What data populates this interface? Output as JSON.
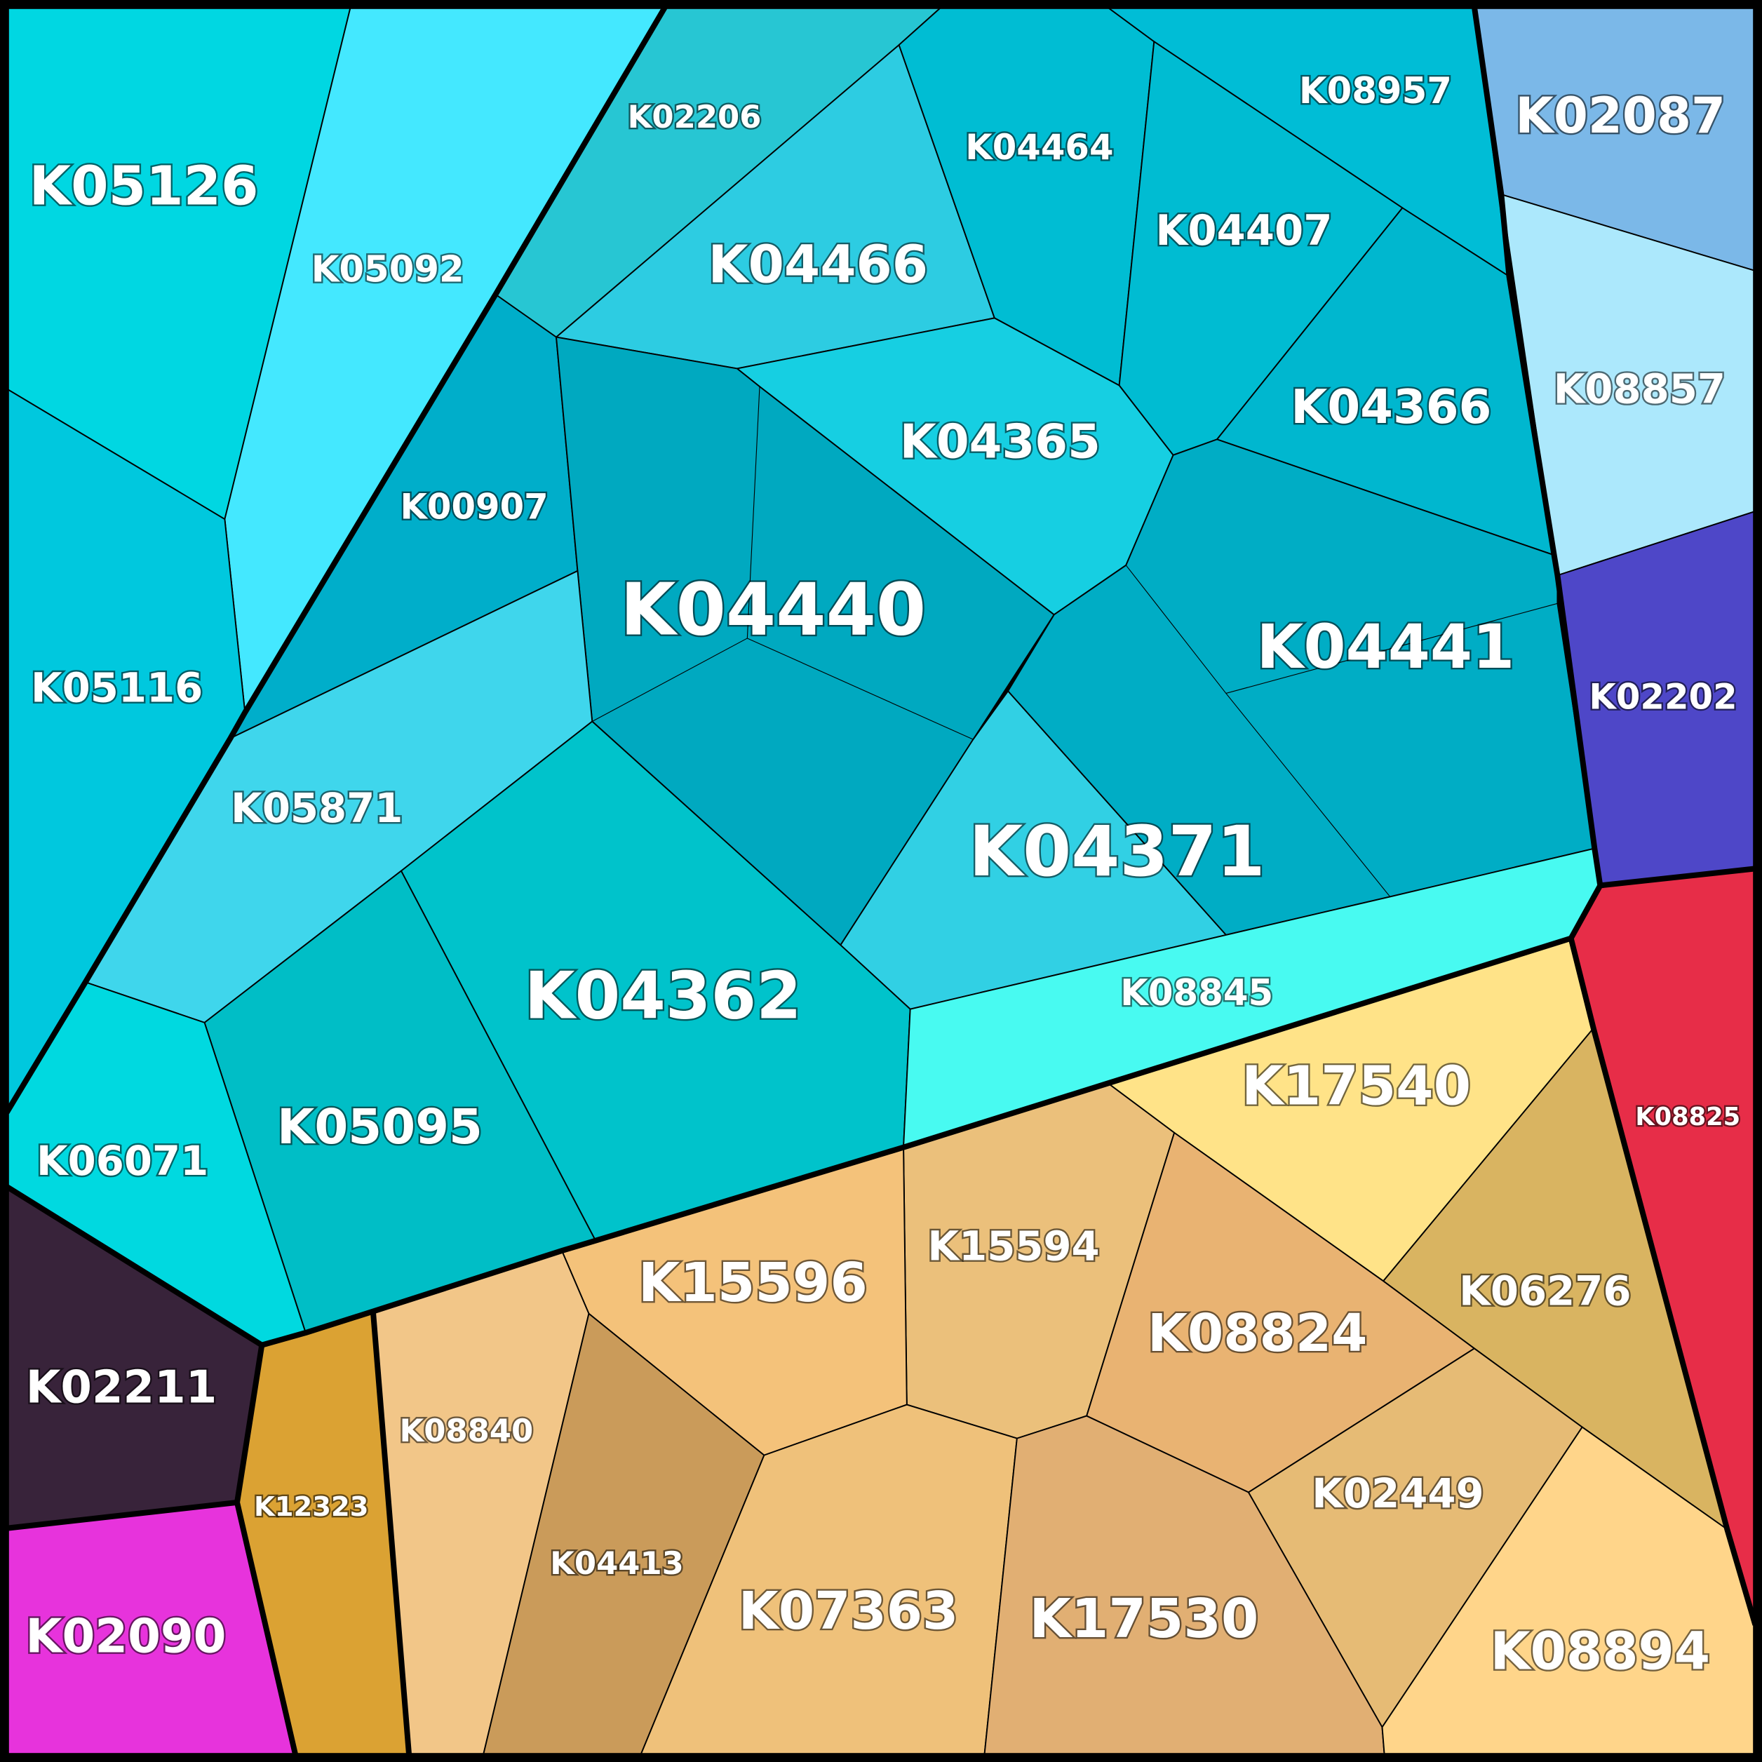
{
  "cells": [
    {
      "id": "K05126",
      "label": "K05126",
      "color": "#00D7E2"
    },
    {
      "id": "K05092",
      "label": "K05092",
      "color": "#44E8FF"
    },
    {
      "id": "K02206",
      "label": "K02206",
      "color": "#27C6D3"
    },
    {
      "id": "K04466",
      "label": "K04466",
      "color": "#2DCCE2"
    },
    {
      "id": "K04464",
      "label": "K04464",
      "color": "#00BDD3"
    },
    {
      "id": "K08957",
      "label": "K08957",
      "color": "#00BDD6"
    },
    {
      "id": "K04407",
      "label": "K04407",
      "color": "#00BCD2"
    },
    {
      "id": "K02087",
      "label": "K02087",
      "color": "#7BB8E8"
    },
    {
      "id": "K08857",
      "label": "K08857",
      "color": "#ACE8FC"
    },
    {
      "id": "K04366",
      "label": "K04366",
      "color": "#00B7CF"
    },
    {
      "id": "K04365",
      "label": "K04365",
      "color": "#16CFE2"
    },
    {
      "id": "K00907",
      "label": "K00907",
      "color": "#00AECA"
    },
    {
      "id": "K04440",
      "label": "K04440",
      "color": "#00A9C0"
    },
    {
      "id": "K05116",
      "label": "K05116",
      "color": "#00C8DE"
    },
    {
      "id": "K04441",
      "label": "K04441",
      "color": "#00ADC5"
    },
    {
      "id": "K02202",
      "label": "K02202",
      "color": "#4E47C8"
    },
    {
      "id": "K05871",
      "label": "K05871",
      "color": "#3FD6EC"
    },
    {
      "id": "K04371",
      "label": "K04371",
      "color": "#31D0E4"
    },
    {
      "id": "K04362",
      "label": "K04362",
      "color": "#00C3CB"
    },
    {
      "id": "K08845",
      "label": "K08845",
      "color": "#48FAF1"
    },
    {
      "id": "K08825",
      "label": "K08825",
      "color": "#E72D48"
    },
    {
      "id": "K17540",
      "label": "K17540",
      "color": "#FFE388"
    },
    {
      "id": "K05095",
      "label": "K05095",
      "color": "#00BEC6"
    },
    {
      "id": "K06071",
      "label": "K06071",
      "color": "#00D9E0"
    },
    {
      "id": "K15594",
      "label": "K15594",
      "color": "#EBC07B"
    },
    {
      "id": "K06276",
      "label": "K06276",
      "color": "#D9B461"
    },
    {
      "id": "K15596",
      "label": "K15596",
      "color": "#F4C27A"
    },
    {
      "id": "K08824",
      "label": "K08824",
      "color": "#E9B372"
    },
    {
      "id": "K02211",
      "label": "K02211",
      "color": "#38233A"
    },
    {
      "id": "K08840",
      "label": "K08840",
      "color": "#F2C688"
    },
    {
      "id": "K12323",
      "label": "K12323",
      "color": "#DBA233"
    },
    {
      "id": "K02449",
      "label": "K02449",
      "color": "#E6BB75"
    },
    {
      "id": "K04413",
      "label": "K04413",
      "color": "#CA9B5A"
    },
    {
      "id": "K07363",
      "label": "K07363",
      "color": "#EFC17A"
    },
    {
      "id": "K17530",
      "label": "K17530",
      "color": "#E1AF73"
    },
    {
      "id": "K08894",
      "label": "K08894",
      "color": "#FFD58A"
    },
    {
      "id": "K02090",
      "label": "K02090",
      "color": "#E733DC"
    }
  ]
}
